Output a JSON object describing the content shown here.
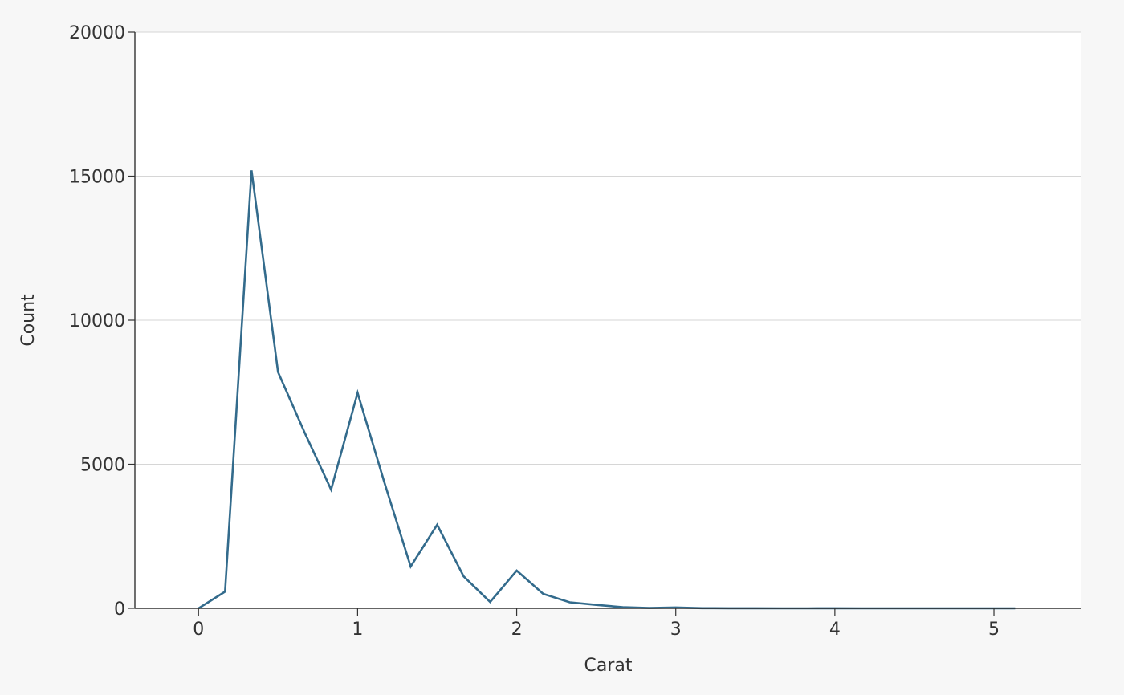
{
  "chart_data": {
    "type": "line",
    "title": "",
    "xlabel": "Carat",
    "ylabel": "Count",
    "xlim": [
      -0.4,
      5.55
    ],
    "ylim": [
      0,
      20000
    ],
    "x_ticks": [
      0,
      1,
      2,
      3,
      4,
      5
    ],
    "y_ticks": [
      0,
      5000,
      10000,
      15000,
      20000
    ],
    "grid": "horizontal",
    "colors": {
      "line": "#336b8c",
      "grid": "#d6d6d6",
      "axis": "#333333",
      "plot_bg": "#ffffff",
      "page_bg": "#f7f7f7"
    },
    "series": [
      {
        "x": [
          0,
          0.1667,
          0.3333,
          0.5,
          0.6667,
          0.8333,
          1.0,
          1.1667,
          1.3333,
          1.5,
          1.6667,
          1.8333,
          2.0,
          2.1667,
          2.3333,
          2.5,
          2.6667,
          2.8333,
          3.0,
          3.1667,
          3.3333,
          3.5,
          3.6667,
          3.8333,
          4.0,
          4.1667,
          4.3333,
          4.5,
          4.6667,
          4.8333,
          5.0,
          5.1333
        ],
        "y": [
          0,
          580,
          15200,
          8200,
          6100,
          4120,
          7480,
          4400,
          1450,
          2900,
          1110,
          220,
          1310,
          500,
          210,
          120,
          40,
          10,
          30,
          5,
          3,
          2,
          1,
          1,
          4,
          1,
          1,
          0,
          0,
          0,
          1,
          0
        ]
      }
    ]
  }
}
